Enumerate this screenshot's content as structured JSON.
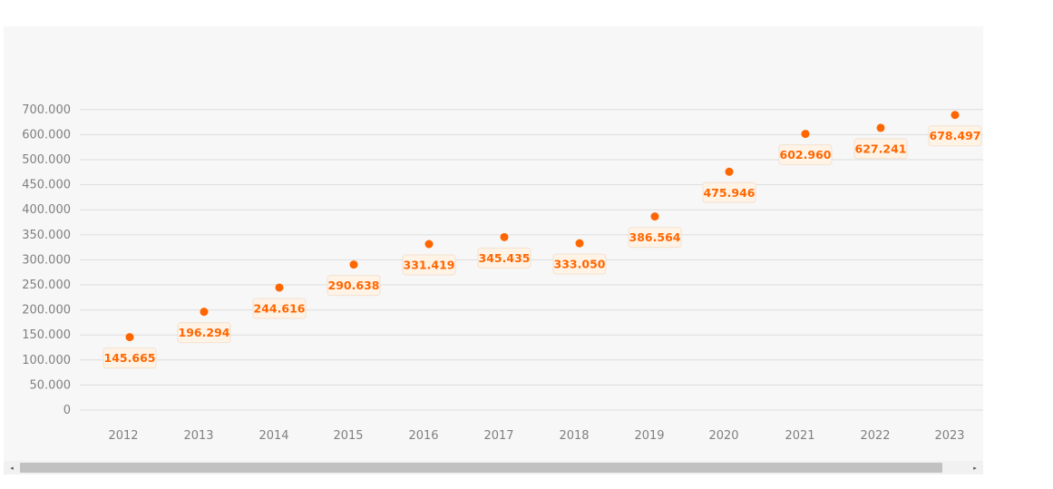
{
  "chart_data": {
    "type": "scatter",
    "title": "",
    "xlabel": "",
    "ylabel": "",
    "categories": [
      "2012",
      "2013",
      "2014",
      "2015",
      "2016",
      "2017",
      "2018",
      "2019",
      "2020",
      "2021",
      "2022",
      "2023"
    ],
    "values": [
      145665,
      196294,
      244616,
      290638,
      331419,
      345435,
      333050,
      386564,
      475946,
      602960,
      627241,
      678497
    ],
    "data_labels": [
      "145.665",
      "196.294",
      "244.616",
      "290.638",
      "331.419",
      "345.435",
      "333.050",
      "386.564",
      "475.946",
      "602.960",
      "627.241",
      "678.497"
    ],
    "y_ticks": [
      0,
      50000,
      100000,
      150000,
      200000,
      250000,
      300000,
      350000,
      400000,
      450000,
      500000,
      600000,
      700000
    ],
    "y_tick_labels": [
      "0",
      "50.000",
      "100.000",
      "150.000",
      "200.000",
      "250.000",
      "300.000",
      "350.000",
      "400.000",
      "450.000",
      "500.000",
      "600.000",
      "700.000"
    ],
    "grid": true,
    "legend": "none",
    "colors": {
      "point": "#ff6600",
      "label_text": "#ff6600",
      "label_bg": "#fff3e6",
      "grid": "#dddddd",
      "axis_text": "#808080"
    }
  },
  "scrollbar": {
    "left_arrow": "◂",
    "right_arrow": "▸"
  }
}
